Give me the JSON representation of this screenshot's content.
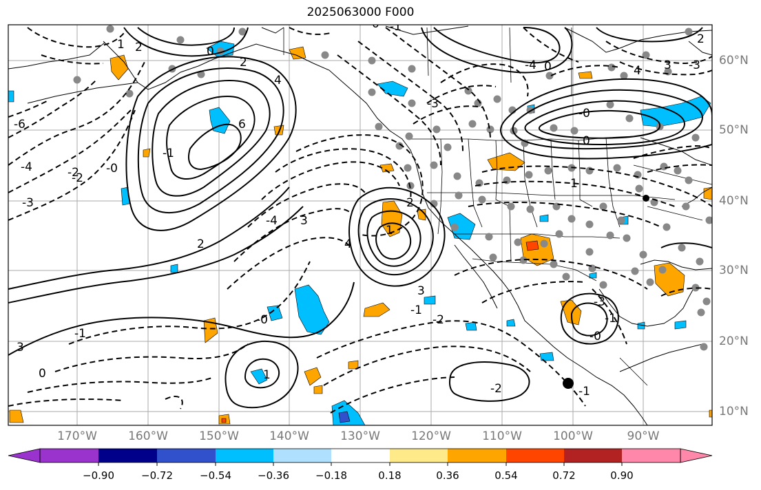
{
  "title": "2025063000 F000",
  "lon_labels": [
    "170°W",
    "160°W",
    "150°W",
    "140°W",
    "130°W",
    "120°W",
    "110°W",
    "100°W",
    "90°W"
  ],
  "lat_labels": [
    "60°N",
    "50°N",
    "40°N",
    "30°N",
    "20°N",
    "10°N"
  ],
  "colorbar": {
    "ticks": [
      "−0.90",
      "−0.72",
      "−0.54",
      "−0.36",
      "−0.18",
      "0.18",
      "0.36",
      "0.54",
      "0.72",
      "0.90"
    ],
    "colors": [
      "#9a32cd",
      "#00008b",
      "#3050cc",
      "#00bfff",
      "#afe1ff",
      "#ffffff",
      "#ffea8a",
      "#ffa500",
      "#ff4500",
      "#b22222",
      "#ff88aa"
    ]
  },
  "contour_labels": [
    "0",
    "2",
    "4",
    "6",
    "-1",
    "-2",
    "-3",
    "-4",
    "3",
    "1",
    "2",
    "4",
    "-0",
    "-1",
    "3",
    "-6",
    "-4",
    "-2",
    "-0",
    "0",
    "1",
    "2",
    "3",
    "-1",
    "-2",
    "-3",
    "-4",
    "0",
    "-0",
    "0",
    "1",
    "2",
    "3",
    "4",
    "-3",
    "-2",
    "-1",
    "-0",
    "-3",
    "-1",
    "-1",
    "0",
    "1",
    "2"
  ]
}
